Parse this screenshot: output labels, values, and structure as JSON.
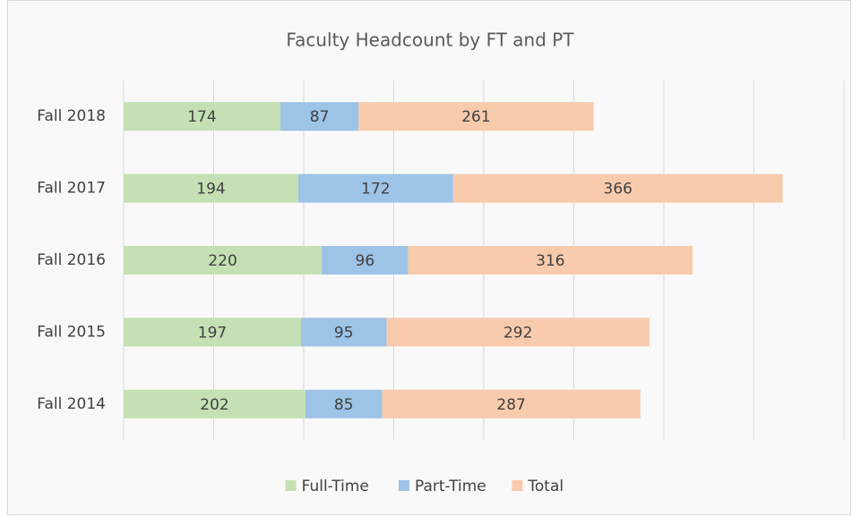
{
  "chart_data": {
    "type": "stacked_barh",
    "title": "Faculty Headcount by FT and PT",
    "categories": [
      "Fall 2018",
      "Fall 2017",
      "Fall 2016",
      "Fall 2015",
      "Fall 2014"
    ],
    "series": [
      {
        "name": "Full-Time",
        "color": "#c5e0b4",
        "values": [
          174,
          194,
          220,
          197,
          202
        ]
      },
      {
        "name": "Part-Time",
        "color": "#9dc3e6",
        "values": [
          87,
          172,
          96,
          95,
          85
        ]
      },
      {
        "name": "Total",
        "color": "#f8cbad",
        "values": [
          261,
          366,
          316,
          292,
          287
        ]
      }
    ],
    "xlim": [
      0,
      800
    ],
    "xticks": [
      0,
      100,
      200,
      300,
      400,
      500,
      600,
      700,
      800
    ],
    "grid": true,
    "tick_labels": false,
    "legend": "bottom"
  }
}
